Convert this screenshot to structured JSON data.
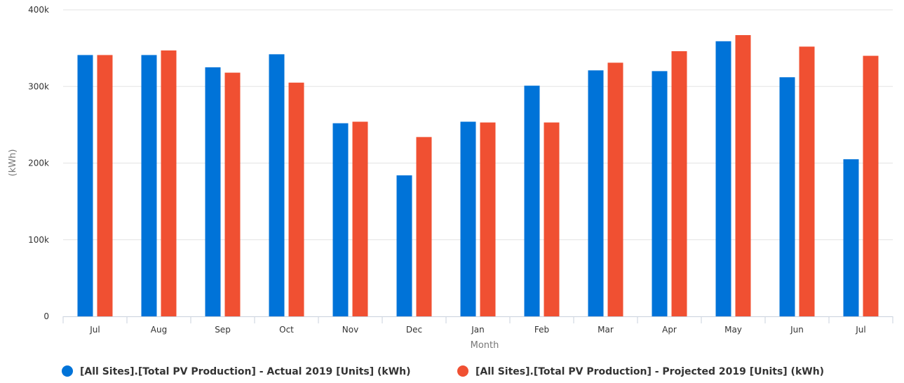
{
  "chart_data": {
    "type": "bar",
    "xlabel": "Month",
    "ylabel": "(kWh)",
    "categories": [
      "Jul",
      "Aug",
      "Sep",
      "Oct",
      "Nov",
      "Dec",
      "Jan",
      "Feb",
      "Mar",
      "Apr",
      "May",
      "Jun",
      "Jul"
    ],
    "yticks": [
      "0",
      "100k",
      "200k",
      "300k",
      "400k"
    ],
    "ylim": [
      0,
      400000
    ],
    "grid": true,
    "legend_position": "bottom",
    "series": [
      {
        "name": "[All Sites].[Total PV Production] - Actual 2019 [Units] (kWh)",
        "color": "#0073d8",
        "values": [
          341000,
          341000,
          325000,
          342000,
          252000,
          184000,
          254000,
          301000,
          321000,
          320000,
          359000,
          312000,
          205000
        ]
      },
      {
        "name": "[All Sites].[Total PV Production] - Projected 2019 [Units] (kWh)",
        "color": "#f05032",
        "values": [
          341000,
          347000,
          318000,
          305000,
          254000,
          234000,
          253000,
          253000,
          331000,
          346000,
          367000,
          352000,
          340000
        ]
      }
    ]
  }
}
